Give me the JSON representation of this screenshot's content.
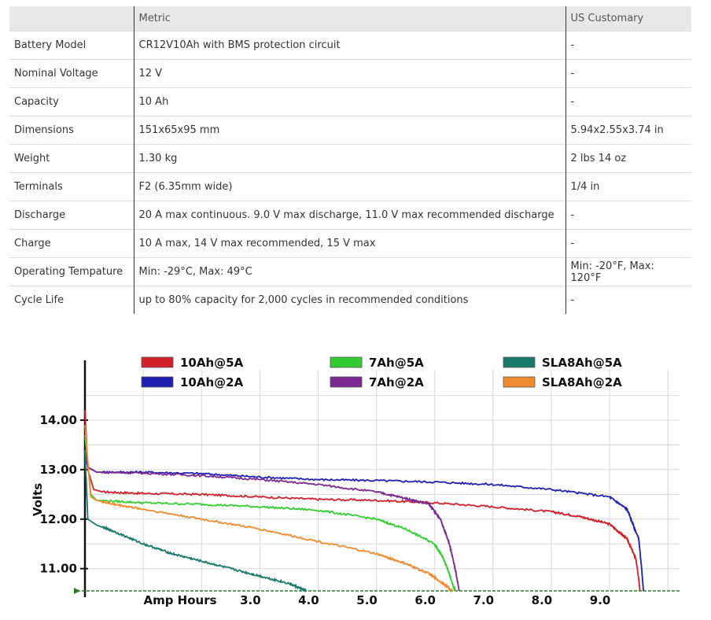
{
  "table": {
    "headers": [
      "",
      "Metric",
      "US Customary"
    ],
    "rows": [
      [
        "Battery Model",
        "CR12V10Ah with BMS protection circuit",
        "-"
      ],
      [
        "Nominal Voltage",
        "12 V",
        "-"
      ],
      [
        "Capacity",
        "10 Ah",
        "-"
      ],
      [
        "Dimensions",
        "151x65x95 mm",
        "5.94x2.55x3.74 in"
      ],
      [
        "Weight",
        "1.30 kg",
        "2 lbs 14 oz"
      ],
      [
        "Terminals",
        "F2 (6.35mm wide)",
        "1/4 in"
      ],
      [
        "Discharge",
        "20 A max continuous. 9.0 V max discharge, 11.0 V max recommended discharge",
        "-"
      ],
      [
        "Charge",
        "10 A max, 14 V max recommended, 15 V max",
        "-"
      ],
      [
        "Operating Tempature",
        "Min: -29°C, Max: 49°C",
        "Min: -20°F, Max: 120°F"
      ],
      [
        "Cycle Life",
        "up to 80% capacity for 2,000 cycles in recommended conditions",
        "-"
      ]
    ]
  },
  "chart_data": {
    "type": "line",
    "title": "",
    "xlabel": "Amp Hours",
    "ylabel": "Volts",
    "xlim": [
      0,
      10.2
    ],
    "ylim": [
      10.55,
      14.7
    ],
    "x_ticks": [
      "3.0",
      "4.0",
      "5.0",
      "6.0",
      "7.0",
      "8.0",
      "9.0"
    ],
    "x_tick_values": [
      3,
      4,
      5,
      6,
      7,
      8,
      9
    ],
    "y_ticks": [
      "14.00",
      "13.00",
      "12.00",
      "11.00"
    ],
    "y_tick_values": [
      14,
      13,
      12,
      11
    ],
    "grid": true,
    "legend": "top",
    "series": [
      {
        "name": "10Ah@5A",
        "color": "#d0202a",
        "x": [
          0,
          0.05,
          0.15,
          0.3,
          1,
          2,
          3,
          4,
          5,
          6,
          7,
          8,
          8.5,
          9,
          9.3,
          9.45,
          9.5,
          9.52
        ],
        "y": [
          14.2,
          13.0,
          12.6,
          12.55,
          12.52,
          12.5,
          12.45,
          12.4,
          12.38,
          12.33,
          12.25,
          12.15,
          12.05,
          11.9,
          11.6,
          11.2,
          10.8,
          10.55
        ]
      },
      {
        "name": "10Ah@2A",
        "color": "#2020b0",
        "x": [
          0,
          0.05,
          0.2,
          1,
          2,
          3,
          4,
          5,
          6,
          7,
          8,
          9,
          9.3,
          9.5,
          9.55,
          9.58
        ],
        "y": [
          13.3,
          13.05,
          12.95,
          12.95,
          12.92,
          12.85,
          12.8,
          12.78,
          12.75,
          12.7,
          12.6,
          12.45,
          12.2,
          11.6,
          11.0,
          10.55
        ]
      },
      {
        "name": "7Ah@5A",
        "color": "#33cc33",
        "x": [
          0,
          0.1,
          0.2,
          1,
          2,
          3,
          4,
          5,
          5.5,
          6,
          6.15,
          6.25,
          6.3,
          6.35
        ],
        "y": [
          13.7,
          12.5,
          12.38,
          12.33,
          12.3,
          12.25,
          12.18,
          12.0,
          11.8,
          11.5,
          11.2,
          10.9,
          10.7,
          10.55
        ]
      },
      {
        "name": "7Ah@2A",
        "color": "#7a2a90",
        "x": [
          0,
          0.05,
          0.2,
          1,
          2,
          3,
          4,
          5,
          5.5,
          5.9,
          6.1,
          6.25,
          6.35,
          6.42
        ],
        "y": [
          13.4,
          13.05,
          12.95,
          12.93,
          12.88,
          12.8,
          12.7,
          12.55,
          12.42,
          12.3,
          12.0,
          11.5,
          11.0,
          10.55
        ]
      },
      {
        "name": "SLA8Ah@5A",
        "color": "#1a7a6a",
        "x": [
          0,
          0.05,
          0.2,
          0.5,
          1,
          1.5,
          2,
          2.5,
          3,
          3.5,
          3.8
        ],
        "y": [
          13.4,
          12.0,
          11.88,
          11.75,
          11.5,
          11.3,
          11.15,
          11.0,
          10.85,
          10.7,
          10.55
        ]
      },
      {
        "name": "SLA8Ah@2A",
        "color": "#ee8a30",
        "x": [
          0,
          0.1,
          0.2,
          0.5,
          1,
          2,
          3,
          4,
          5,
          5.5,
          5.9,
          6.2,
          6.3
        ],
        "y": [
          13.9,
          12.45,
          12.38,
          12.3,
          12.2,
          12.0,
          11.8,
          11.55,
          11.3,
          11.1,
          10.9,
          10.65,
          10.55
        ]
      }
    ]
  }
}
